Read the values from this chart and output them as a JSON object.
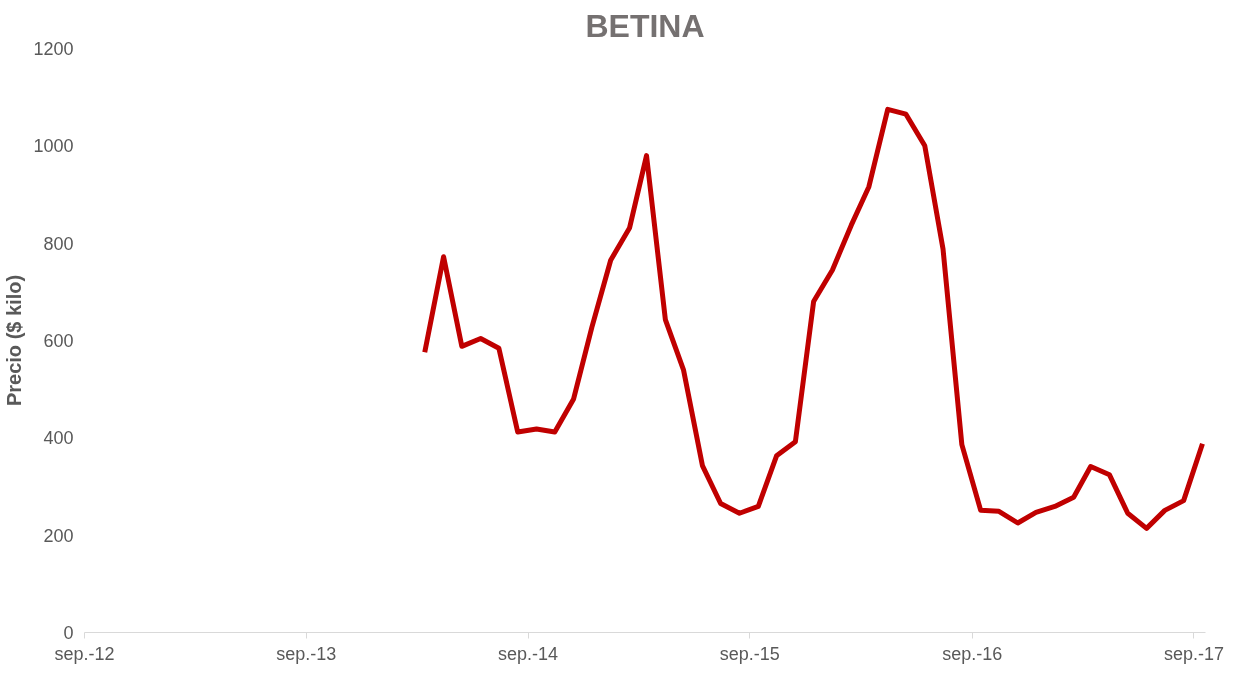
{
  "chart_data": {
    "type": "line",
    "title": "BETINA",
    "ylabel": "Precio ($ kilo)",
    "x": [
      "2014-03-15",
      "2014-04-15",
      "2014-05-15",
      "2014-06-15",
      "2014-07-15",
      "2014-08-15",
      "2014-09-15",
      "2014-10-15",
      "2014-11-15",
      "2014-12-15",
      "2015-01-15",
      "2015-02-15",
      "2015-03-15",
      "2015-04-15",
      "2015-05-15",
      "2015-06-15",
      "2015-07-15",
      "2015-08-15",
      "2015-09-15",
      "2015-10-15",
      "2015-11-15",
      "2015-12-15",
      "2016-01-15",
      "2016-02-15",
      "2016-03-15",
      "2016-04-15",
      "2016-05-15",
      "2016-06-15",
      "2016-07-15",
      "2016-08-15",
      "2016-09-15",
      "2016-10-15",
      "2016-11-15",
      "2016-12-15",
      "2017-01-15",
      "2017-02-15",
      "2017-03-15",
      "2017-04-15",
      "2017-05-15",
      "2017-06-15",
      "2017-07-15",
      "2017-08-15",
      "2017-09-15"
    ],
    "series": [
      {
        "color": "#c00000",
        "values": [
          576,
          772,
          588,
          604,
          584,
          412,
          418,
          412,
          480,
          627,
          765,
          831,
          980,
          643,
          539,
          343,
          265,
          245,
          259,
          363,
          392,
          680,
          745,
          837,
          916,
          1075,
          1065,
          1000,
          788,
          386,
          251,
          249,
          225,
          247,
          259,
          278,
          341,
          324,
          245,
          214,
          251,
          271,
          388
        ]
      }
    ],
    "xlim": [
      "2012-09-01",
      "2017-09-20"
    ],
    "xticks": [
      {
        "value": "2012-09-01",
        "label": "sep.-12"
      },
      {
        "value": "2013-09-01",
        "label": "sep.-13"
      },
      {
        "value": "2014-09-01",
        "label": "sep.-14"
      },
      {
        "value": "2015-09-01",
        "label": "sep.-15"
      },
      {
        "value": "2016-09-01",
        "label": "sep.-16"
      },
      {
        "value": "2017-09-01",
        "label": "sep.-17"
      }
    ],
    "ylim": [
      0,
      1200
    ],
    "yticks": [
      0,
      200,
      400,
      600,
      800,
      1000,
      1200
    ],
    "grid": false,
    "marker": "none",
    "line_style": "solid"
  }
}
